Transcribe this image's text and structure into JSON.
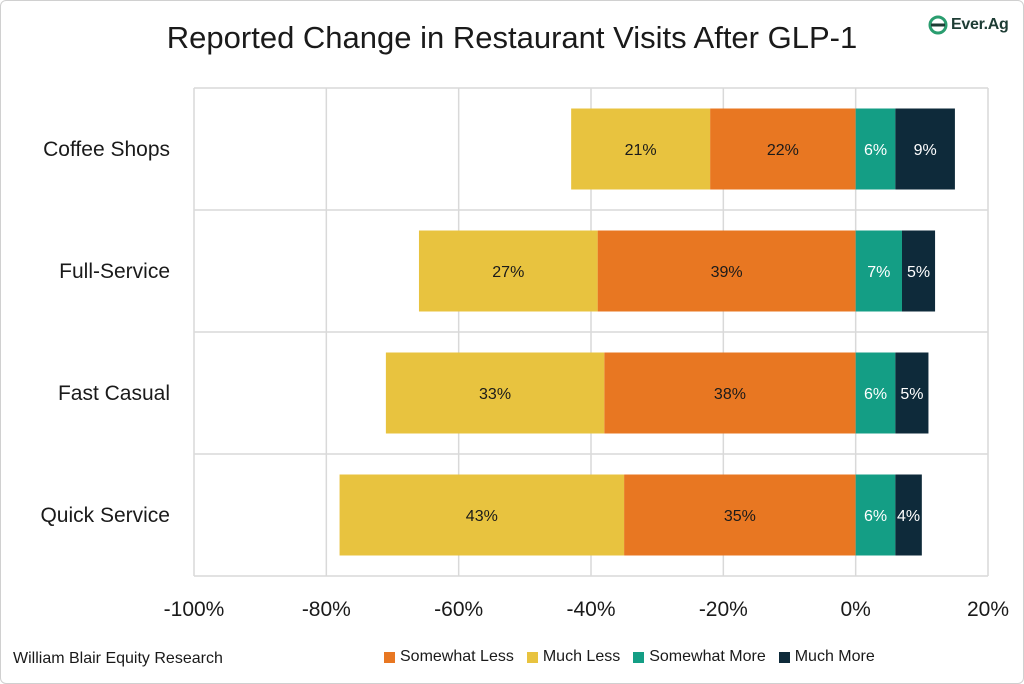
{
  "title": "Reported Change in Restaurant Visits After GLP-1",
  "logo_text": "Ever.Ag",
  "source": "William Blair Equity Research",
  "legend": [
    {
      "label": "Somewhat Less",
      "color": "#E87722"
    },
    {
      "label": "Much Less",
      "color": "#E8C33F"
    },
    {
      "label": "Somewhat More",
      "color": "#149E85"
    },
    {
      "label": "Much More",
      "color": "#0E2A3A"
    }
  ],
  "chart_data": {
    "type": "bar",
    "orientation": "horizontal",
    "stacked": true,
    "title": "Reported Change in Restaurant Visits After GLP-1",
    "categories": [
      "Coffee Shops",
      "Full-Service",
      "Fast Casual",
      "Quick Service"
    ],
    "series": [
      {
        "name": "Somewhat Less",
        "color": "#E87722",
        "values": [
          -22,
          -39,
          -38,
          -35
        ],
        "labels": [
          "22%",
          "39%",
          "38%",
          "35%"
        ],
        "label_color": "#1a1a1a"
      },
      {
        "name": "Much Less",
        "color": "#E8C33F",
        "values": [
          -21,
          -27,
          -33,
          -43
        ],
        "labels": [
          "21%",
          "27%",
          "33%",
          "43%"
        ],
        "label_color": "#1a1a1a"
      },
      {
        "name": "Somewhat More",
        "color": "#149E85",
        "values": [
          6,
          7,
          6,
          6
        ],
        "labels": [
          "6%",
          "7%",
          "6%",
          "6%"
        ],
        "label_color": "#ffffff"
      },
      {
        "name": "Much More",
        "color": "#0E2A3A",
        "values": [
          9,
          5,
          5,
          4
        ],
        "labels": [
          "9%",
          "5%",
          "5%",
          "4%"
        ],
        "label_color": "#ffffff"
      }
    ],
    "xlim": [
      -100,
      20
    ],
    "xticks": [
      -100,
      -80,
      -60,
      -40,
      -20,
      0,
      20
    ],
    "xtick_labels": [
      "-100%",
      "-80%",
      "-60%",
      "-40%",
      "-20%",
      "0%",
      "20%"
    ],
    "grid": true,
    "legend_position": "bottom"
  }
}
